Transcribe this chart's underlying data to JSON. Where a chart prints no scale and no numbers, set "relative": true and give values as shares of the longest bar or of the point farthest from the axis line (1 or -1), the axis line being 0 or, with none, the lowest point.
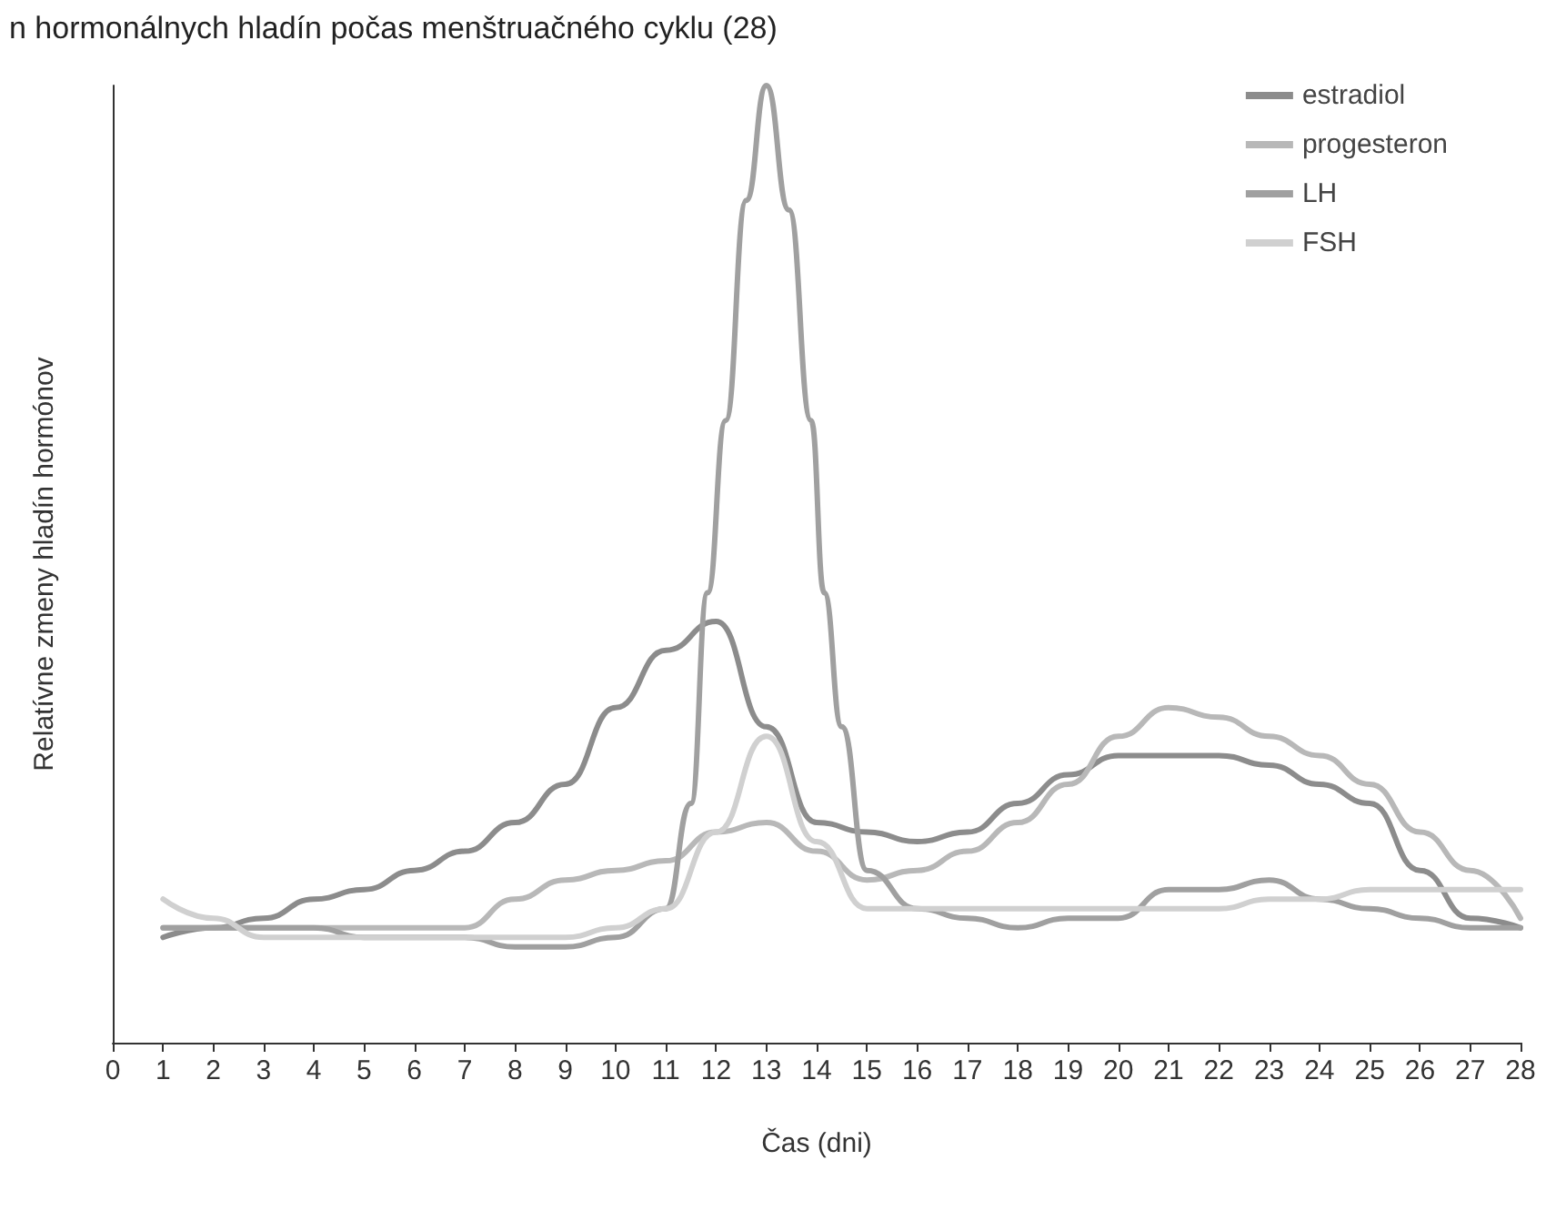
{
  "chart_data": {
    "type": "line",
    "title": "n hormonálnych hladín počas menštruačného cyklu (28)",
    "xlabel": "Čas (dni)",
    "ylabel": "Relatívne zmeny hladín hormónov",
    "relative": true,
    "xlim": [
      0,
      28
    ],
    "xticks": [
      0,
      1,
      2,
      3,
      4,
      5,
      6,
      7,
      8,
      9,
      10,
      11,
      12,
      13,
      14,
      15,
      16,
      17,
      18,
      19,
      20,
      21,
      22,
      23,
      24,
      25,
      26,
      27,
      28
    ],
    "grid": false,
    "legend": "top right",
    "marker": "none",
    "line_style": "solid",
    "x": [
      1,
      2,
      3,
      4,
      5,
      6,
      7,
      8,
      9,
      10,
      11,
      12,
      13,
      14,
      15,
      16,
      17,
      18,
      19,
      20,
      21,
      22,
      23,
      24,
      25,
      26,
      27,
      28
    ],
    "series": [
      {
        "name": "estradiol",
        "color": "#8c8c8c",
        "values": [
          0.11,
          0.12,
          0.13,
          0.15,
          0.16,
          0.18,
          0.2,
          0.23,
          0.27,
          0.35,
          0.41,
          0.44,
          0.33,
          0.23,
          0.22,
          0.21,
          0.22,
          0.25,
          0.28,
          0.3,
          0.3,
          0.3,
          0.29,
          0.27,
          0.25,
          0.18,
          0.13,
          0.12
        ]
      },
      {
        "name": "progesteron",
        "color": "#b8b8b8",
        "values": [
          0.12,
          0.12,
          0.12,
          0.12,
          0.12,
          0.12,
          0.12,
          0.15,
          0.17,
          0.18,
          0.19,
          0.22,
          0.23,
          0.2,
          0.17,
          0.18,
          0.2,
          0.23,
          0.27,
          0.32,
          0.35,
          0.34,
          0.32,
          0.3,
          0.27,
          0.22,
          0.18,
          0.13
        ]
      },
      {
        "name": "LH",
        "color": "#a0a0a0",
        "x": [
          1,
          2,
          3,
          4,
          5,
          6,
          7,
          8,
          9,
          10,
          11,
          11.5,
          11.83,
          12.19,
          12.6,
          13,
          13.45,
          13.89,
          14.15,
          14.5,
          15,
          16,
          17,
          18,
          19,
          20,
          21,
          22,
          23,
          24,
          25,
          26,
          27,
          28
        ],
        "values": [
          0.12,
          0.12,
          0.12,
          0.12,
          0.11,
          0.11,
          0.11,
          0.1,
          0.1,
          0.11,
          0.14,
          0.25,
          0.47,
          0.65,
          0.88,
          1,
          0.87,
          0.65,
          0.47,
          0.33,
          0.18,
          0.14,
          0.13,
          0.12,
          0.13,
          0.13,
          0.16,
          0.16,
          0.17,
          0.15,
          0.14,
          0.13,
          0.12,
          0.12
        ]
      },
      {
        "name": "FSH",
        "color": "#d0d0d0",
        "values": [
          0.15,
          0.13,
          0.11,
          0.11,
          0.11,
          0.11,
          0.11,
          0.11,
          0.11,
          0.12,
          0.14,
          0.22,
          0.32,
          0.21,
          0.14,
          0.14,
          0.14,
          0.14,
          0.14,
          0.14,
          0.14,
          0.14,
          0.15,
          0.15,
          0.16,
          0.16,
          0.16,
          0.16
        ]
      }
    ]
  }
}
